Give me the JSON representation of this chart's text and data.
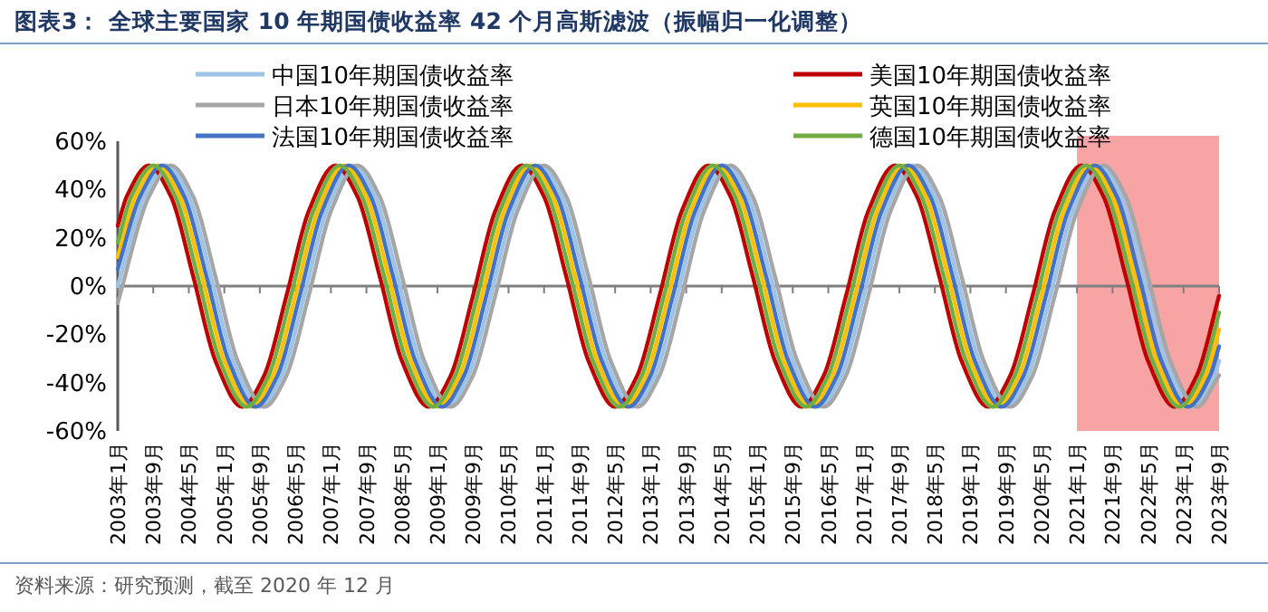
{
  "chart_data": {
    "type": "line",
    "title": "图表3：  全球主要国家 10 年期国债收益率 42 个月高斯滤波（振幅归一化调整）",
    "annotations": [
      "资料来源：研究预测，截至 2020 年 12 月"
    ],
    "legend": "top",
    "xlim": [
      "2003-01",
      "2023-09"
    ],
    "ylim": [
      -60,
      60
    ],
    "yticks": [
      {
        "value": -60,
        "label": "-60%"
      },
      {
        "value": -40,
        "label": "-40%"
      },
      {
        "value": -20,
        "label": "-20%"
      },
      {
        "value": 0,
        "label": "0%"
      },
      {
        "value": 20,
        "label": "20%"
      },
      {
        "value": 40,
        "label": "40%"
      },
      {
        "value": 60,
        "label": "60%"
      }
    ],
    "xticks": [
      {
        "value": "2003-01",
        "label": "2003年1月"
      },
      {
        "value": "2003-09",
        "label": "2003年9月"
      },
      {
        "value": "2004-05",
        "label": "2004年5月"
      },
      {
        "value": "2005-01",
        "label": "2005年1月"
      },
      {
        "value": "2005-09",
        "label": "2005年9月"
      },
      {
        "value": "2006-05",
        "label": "2006年5月"
      },
      {
        "value": "2007-01",
        "label": "2007年1月"
      },
      {
        "value": "2007-09",
        "label": "2007年9月"
      },
      {
        "value": "2008-05",
        "label": "2008年5月"
      },
      {
        "value": "2009-01",
        "label": "2009年1月"
      },
      {
        "value": "2009-09",
        "label": "2009年9月"
      },
      {
        "value": "2010-05",
        "label": "2010年5月"
      },
      {
        "value": "2011-01",
        "label": "2011年1月"
      },
      {
        "value": "2011-09",
        "label": "2011年9月"
      },
      {
        "value": "2012-05",
        "label": "2012年5月"
      },
      {
        "value": "2013-01",
        "label": "2013年1月"
      },
      {
        "value": "2013-09",
        "label": "2013年9月"
      },
      {
        "value": "2014-05",
        "label": "2014年5月"
      },
      {
        "value": "2015-01",
        "label": "2015年1月"
      },
      {
        "value": "2015-09",
        "label": "2015年9月"
      },
      {
        "value": "2016-05",
        "label": "2016年5月"
      },
      {
        "value": "2017-01",
        "label": "2017年1月"
      },
      {
        "value": "2017-09",
        "label": "2017年9月"
      },
      {
        "value": "2018-05",
        "label": "2018年5月"
      },
      {
        "value": "2019-01",
        "label": "2019年1月"
      },
      {
        "value": "2019-09",
        "label": "2019年9月"
      },
      {
        "value": "2020-05",
        "label": "2020年5月"
      },
      {
        "value": "2021-01",
        "label": "2021年1月"
      },
      {
        "value": "2021-09",
        "label": "2021年9月"
      },
      {
        "value": "2022-05",
        "label": "2022年5月"
      },
      {
        "value": "2023-01",
        "label": "2023年1月"
      },
      {
        "value": "2023-09",
        "label": "2023年9月"
      }
    ],
    "bands": [
      {
        "axis": "x",
        "from": "2021-01",
        "to": "2023-09",
        "color": "#f8a4a4"
      }
    ],
    "series": [
      {
        "name": "中国10年期国债收益率",
        "color": "#9dc3e6",
        "x": [
          "2003-01",
          "2003-07",
          "2003-12",
          "2004-05",
          "2004-10",
          "2005-03",
          "2005-09",
          "2006-02",
          "2006-07",
          "2006-12",
          "2007-06",
          "2007-11",
          "2008-04",
          "2008-09",
          "2009-03",
          "2009-08",
          "2010-01",
          "2010-06",
          "2010-12",
          "2011-05",
          "2011-10",
          "2012-03",
          "2012-09",
          "2013-02",
          "2013-07",
          "2013-12",
          "2014-06",
          "2014-11",
          "2015-04",
          "2015-09",
          "2016-03",
          "2016-08",
          "2017-01",
          "2017-06",
          "2017-12",
          "2018-05",
          "2018-10",
          "2019-03",
          "2019-09",
          "2020-02",
          "2020-07",
          "2020-12",
          "2021-06",
          "2021-11",
          "2022-04",
          "2022-09",
          "2023-03",
          "2023-08",
          "2023-09"
        ],
        "values": [
          0,
          37,
          50,
          37,
          4,
          -31,
          -50,
          -37,
          -4,
          31,
          50,
          37,
          4,
          -31,
          -50,
          -37,
          -4,
          31,
          50,
          37,
          4,
          -31,
          -50,
          -37,
          -4,
          31,
          50,
          37,
          4,
          -31,
          -50,
          -37,
          -4,
          31,
          50,
          37,
          4,
          -31,
          -50,
          -37,
          -4,
          31,
          50,
          37,
          4,
          -31,
          -50,
          -37,
          -31
        ]
      },
      {
        "name": "美国10年期国债收益率",
        "color": "#c00000",
        "x": [
          "2003-01",
          "2003-03",
          "2003-08",
          "2004-01",
          "2004-06",
          "2004-11",
          "2005-05",
          "2005-10",
          "2006-03",
          "2006-08",
          "2007-02",
          "2007-07",
          "2007-12",
          "2008-05",
          "2008-11",
          "2009-04",
          "2009-09",
          "2010-02",
          "2010-08",
          "2011-01",
          "2011-06",
          "2011-11",
          "2012-05",
          "2012-10",
          "2013-03",
          "2013-08",
          "2014-02",
          "2014-07",
          "2014-12",
          "2015-05",
          "2015-11",
          "2016-04",
          "2016-09",
          "2017-02",
          "2017-08",
          "2018-01",
          "2018-06",
          "2018-11",
          "2019-05",
          "2019-10",
          "2020-03",
          "2020-08",
          "2021-02",
          "2021-07",
          "2021-12",
          "2022-05",
          "2022-11",
          "2023-04",
          "2023-09"
        ],
        "values": [
          25,
          37,
          50,
          37,
          4,
          -31,
          -50,
          -37,
          -4,
          31,
          50,
          37,
          4,
          -31,
          -50,
          -37,
          -4,
          31,
          50,
          37,
          4,
          -31,
          -50,
          -37,
          -4,
          31,
          50,
          37,
          4,
          -31,
          -50,
          -37,
          -4,
          31,
          50,
          37,
          4,
          -31,
          -50,
          -37,
          -4,
          31,
          50,
          37,
          4,
          -31,
          -50,
          -37,
          -4
        ]
      },
      {
        "name": "日本10年期国债收益率",
        "color": "#a6a6a6",
        "x": [
          "2003-01",
          "2003-08",
          "2004-01",
          "2004-06",
          "2004-11",
          "2005-04",
          "2005-10",
          "2006-03",
          "2006-08",
          "2007-01",
          "2007-07",
          "2007-12",
          "2008-05",
          "2008-10",
          "2009-04",
          "2009-09",
          "2010-02",
          "2010-07",
          "2011-01",
          "2011-06",
          "2011-11",
          "2012-04",
          "2012-10",
          "2013-03",
          "2013-08",
          "2014-01",
          "2014-07",
          "2014-12",
          "2015-05",
          "2015-10",
          "2016-04",
          "2016-09",
          "2017-02",
          "2017-07",
          "2018-01",
          "2018-06",
          "2018-11",
          "2019-04",
          "2019-10",
          "2020-03",
          "2020-08",
          "2021-01",
          "2021-07",
          "2021-12",
          "2022-05",
          "2022-10",
          "2023-04",
          "2023-09"
        ],
        "values": [
          -7,
          37,
          50,
          37,
          4,
          -31,
          -50,
          -37,
          -4,
          31,
          50,
          37,
          4,
          -31,
          -50,
          -37,
          -4,
          31,
          50,
          37,
          4,
          -31,
          -50,
          -37,
          -4,
          31,
          50,
          37,
          4,
          -31,
          -50,
          -37,
          -4,
          31,
          50,
          37,
          4,
          -31,
          -50,
          -37,
          -4,
          31,
          50,
          37,
          4,
          -31,
          -50,
          -37
        ]
      },
      {
        "name": "英国10年期国债收益率",
        "color": "#ffc000",
        "x": [
          "2003-01",
          "2003-05",
          "2003-10",
          "2004-03",
          "2004-08",
          "2005-01",
          "2005-07",
          "2005-12",
          "2006-05",
          "2006-10",
          "2007-04",
          "2007-09",
          "2008-02",
          "2008-07",
          "2009-01",
          "2009-06",
          "2009-11",
          "2010-04",
          "2010-10",
          "2011-03",
          "2011-08",
          "2012-01",
          "2012-07",
          "2012-12",
          "2013-05",
          "2013-10",
          "2014-04",
          "2014-09",
          "2015-02",
          "2015-07",
          "2016-01",
          "2016-06",
          "2016-11",
          "2017-04",
          "2017-10",
          "2018-03",
          "2018-08",
          "2019-01",
          "2019-07",
          "2019-12",
          "2020-05",
          "2020-10",
          "2021-04",
          "2021-09",
          "2022-02",
          "2022-07",
          "2023-01",
          "2023-06",
          "2023-09"
        ],
        "values": [
          12,
          37,
          50,
          37,
          4,
          -31,
          -50,
          -37,
          -4,
          31,
          50,
          37,
          4,
          -31,
          -50,
          -37,
          -4,
          31,
          50,
          37,
          4,
          -31,
          -50,
          -37,
          -4,
          31,
          50,
          37,
          4,
          -31,
          -50,
          -37,
          -4,
          31,
          50,
          37,
          4,
          -31,
          -50,
          -37,
          -4,
          31,
          50,
          37,
          4,
          -31,
          -50,
          -37,
          -18
        ]
      },
      {
        "name": "法国10年期国债收益率",
        "color": "#4472c4",
        "x": [
          "2003-01",
          "2003-06",
          "2003-11",
          "2004-04",
          "2004-09",
          "2005-02",
          "2005-08",
          "2006-01",
          "2006-06",
          "2006-11",
          "2007-05",
          "2007-10",
          "2008-03",
          "2008-08",
          "2009-02",
          "2009-07",
          "2009-12",
          "2010-05",
          "2010-11",
          "2011-04",
          "2011-09",
          "2012-02",
          "2012-08",
          "2013-01",
          "2013-06",
          "2013-11",
          "2014-05",
          "2014-10",
          "2015-03",
          "2015-08",
          "2016-02",
          "2016-07",
          "2016-12",
          "2017-05",
          "2017-11",
          "2018-04",
          "2018-09",
          "2019-02",
          "2019-08",
          "2020-01",
          "2020-06",
          "2020-11",
          "2021-05",
          "2021-10",
          "2022-03",
          "2022-08",
          "2023-02",
          "2023-07",
          "2023-09"
        ],
        "values": [
          7,
          37,
          50,
          37,
          4,
          -31,
          -50,
          -37,
          -4,
          31,
          50,
          37,
          4,
          -31,
          -50,
          -37,
          -4,
          31,
          50,
          37,
          4,
          -31,
          -50,
          -37,
          -4,
          31,
          50,
          37,
          4,
          -31,
          -50,
          -37,
          -4,
          31,
          50,
          37,
          4,
          -31,
          -50,
          -37,
          -4,
          31,
          50,
          37,
          4,
          -31,
          -50,
          -37,
          -25
        ]
      },
      {
        "name": "德国10年期国债收益率",
        "color": "#70ad47",
        "x": [
          "2003-01",
          "2003-04",
          "2003-09",
          "2004-02",
          "2004-07",
          "2004-12",
          "2005-06",
          "2005-11",
          "2006-04",
          "2006-09",
          "2007-03",
          "2007-08",
          "2008-01",
          "2008-06",
          "2008-12",
          "2009-05",
          "2009-10",
          "2010-03",
          "2010-09",
          "2011-02",
          "2011-07",
          "2011-12",
          "2012-06",
          "2012-11",
          "2013-04",
          "2013-09",
          "2014-03",
          "2014-08",
          "2015-01",
          "2015-06",
          "2015-12",
          "2016-05",
          "2016-10",
          "2017-03",
          "2017-09",
          "2018-02",
          "2018-07",
          "2018-12",
          "2019-06",
          "2019-11",
          "2020-04",
          "2020-09",
          "2021-03",
          "2021-08",
          "2022-01",
          "2022-06",
          "2022-12",
          "2023-05",
          "2023-09"
        ],
        "values": [
          18,
          37,
          50,
          37,
          4,
          -31,
          -50,
          -37,
          -4,
          31,
          50,
          37,
          4,
          -31,
          -50,
          -37,
          -4,
          31,
          50,
          37,
          4,
          -31,
          -50,
          -37,
          -4,
          31,
          50,
          37,
          4,
          -31,
          -50,
          -37,
          -4,
          31,
          50,
          37,
          4,
          -31,
          -50,
          -37,
          -4,
          31,
          50,
          37,
          4,
          -31,
          -50,
          -37,
          -11
        ]
      }
    ]
  }
}
